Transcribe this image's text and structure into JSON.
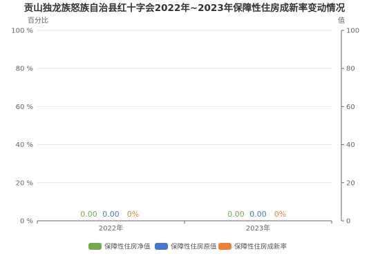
{
  "chart_data": {
    "type": "bar",
    "title": "贡山独龙族怒族自治县红十字会2022年~2023年保障性住房成新率变动情况",
    "categories": [
      "2022年",
      "2023年"
    ],
    "left_axis": {
      "name": "百分比",
      "ticks": [
        "0 %",
        "20 %",
        "40 %",
        "60 %",
        "80 %",
        "100 %"
      ],
      "range": [
        0,
        100
      ]
    },
    "right_axis": {
      "name": "值",
      "ticks": [
        "0",
        "20",
        "40",
        "60",
        "80",
        "100"
      ],
      "range": [
        0,
        100
      ]
    },
    "grid": true,
    "legend_position": "bottom",
    "series": [
      {
        "name": "保障性住房净值",
        "color": "#72ab4c",
        "axis": "right",
        "values": [
          0,
          0
        ],
        "labels": [
          "0.00",
          "0.00"
        ]
      },
      {
        "name": "保障性住房原值",
        "color": "#4a77c9",
        "axis": "right",
        "values": [
          0,
          0
        ],
        "labels": [
          "0.00",
          "0.00"
        ]
      },
      {
        "name": "保障性住房成新率",
        "color": "#ed8135",
        "axis": "left",
        "values": [
          0,
          0
        ],
        "labels": [
          "0%",
          "0%"
        ]
      }
    ]
  }
}
